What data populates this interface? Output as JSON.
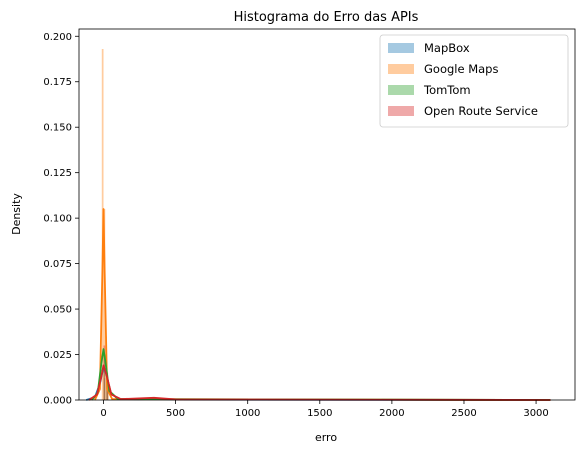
{
  "chart_data": {
    "type": "histogram",
    "title": "Histograma do Erro das APIs",
    "xlabel": "erro",
    "ylabel": "Density",
    "xlim": [
      -170,
      3270
    ],
    "ylim": [
      0,
      0.204
    ],
    "xticks": [
      0,
      500,
      1000,
      1500,
      2000,
      2500,
      3000
    ],
    "yticks": [
      0.0,
      0.025,
      0.05,
      0.075,
      0.1,
      0.125,
      0.15,
      0.175,
      0.2
    ],
    "grid": false,
    "legend_position": "top-right",
    "colors": {
      "mapbox": "#1f77b4",
      "google": "#ff7f0e",
      "tomtom": "#2ca02c",
      "ors": "#d62728"
    },
    "series": [
      {
        "name": "MapBox",
        "color": "#1f77b4",
        "bins": [
          [
            0,
            0.012
          ],
          [
            20,
            0.008
          ],
          [
            240,
            0.0008
          ],
          [
            360,
            0.0009
          ]
        ],
        "kde": [
          [
            -120,
            0
          ],
          [
            -60,
            0.0015
          ],
          [
            -25,
            0.009
          ],
          [
            0,
            0.018
          ],
          [
            20,
            0.014
          ],
          [
            50,
            0.004
          ],
          [
            100,
            0.0006
          ],
          [
            240,
            0.0004
          ],
          [
            360,
            0.0006
          ],
          [
            500,
            0.0002
          ],
          [
            3100,
            0.0
          ]
        ]
      },
      {
        "name": "Google Maps",
        "color": "#ff7f0e",
        "bins": [
          [
            -12,
            0.193
          ],
          [
            0,
            0.105
          ],
          [
            12,
            0.035
          ],
          [
            24,
            0.006
          ]
        ],
        "kde": [
          [
            -60,
            0
          ],
          [
            -25,
            0.006
          ],
          [
            -8,
            0.07
          ],
          [
            0,
            0.105
          ],
          [
            8,
            0.07
          ],
          [
            25,
            0.006
          ],
          [
            60,
            0.0005
          ],
          [
            3100,
            0.0
          ]
        ]
      },
      {
        "name": "TomTom",
        "color": "#2ca02c",
        "bins": [
          [
            0,
            0.025
          ],
          [
            20,
            0.012
          ]
        ],
        "kde": [
          [
            -80,
            0
          ],
          [
            -40,
            0.004
          ],
          [
            -15,
            0.02
          ],
          [
            0,
            0.028
          ],
          [
            15,
            0.02
          ],
          [
            40,
            0.005
          ],
          [
            100,
            0.0005
          ],
          [
            3100,
            0.0
          ]
        ]
      },
      {
        "name": "Open Route Service",
        "color": "#d62728",
        "bins": [
          [
            0,
            0.03
          ],
          [
            20,
            0.015
          ],
          [
            340,
            0.0015
          ]
        ],
        "kde": [
          [
            -100,
            0
          ],
          [
            -45,
            0.003
          ],
          [
            -15,
            0.013
          ],
          [
            0,
            0.019
          ],
          [
            20,
            0.014
          ],
          [
            55,
            0.003
          ],
          [
            120,
            0.0005
          ],
          [
            350,
            0.0012
          ],
          [
            500,
            0.0003
          ],
          [
            3100,
            0.0
          ]
        ]
      }
    ]
  }
}
